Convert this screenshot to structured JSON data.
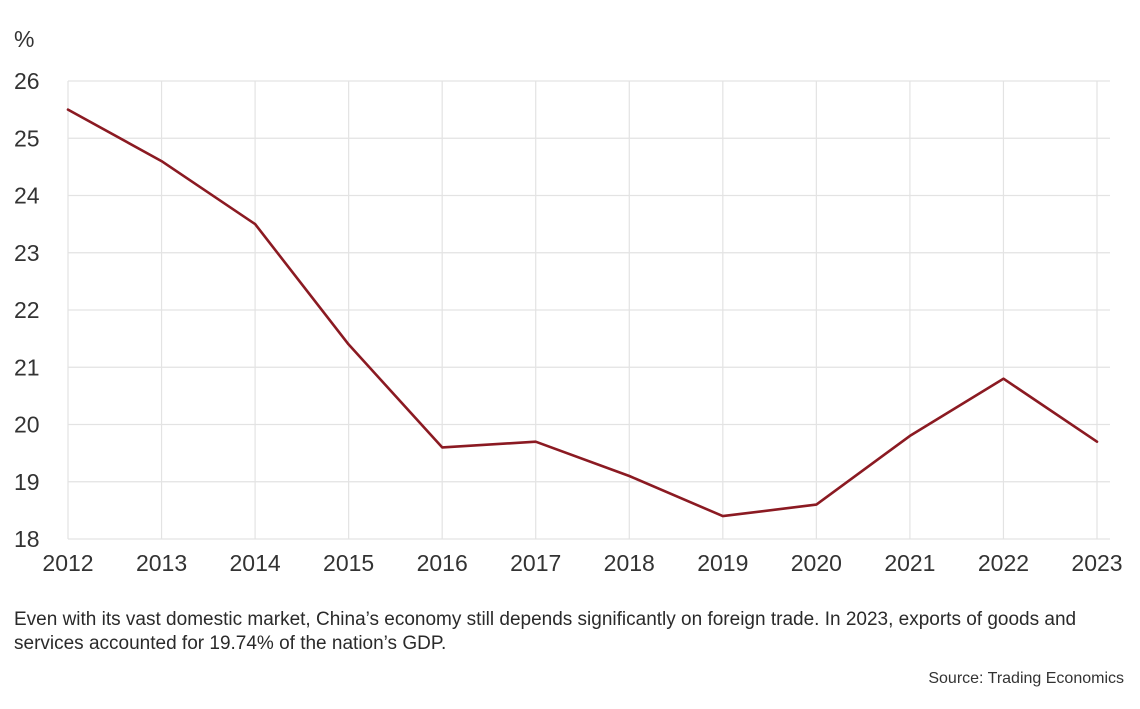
{
  "chart_data": {
    "type": "line",
    "title": "",
    "xlabel": "",
    "ylabel": "%",
    "x": [
      "2012",
      "2013",
      "2014",
      "2015",
      "2016",
      "2017",
      "2018",
      "2019",
      "2020",
      "2021",
      "2022",
      "2023"
    ],
    "series": [
      {
        "values": [
          25.5,
          24.6,
          23.5,
          21.4,
          19.6,
          19.7,
          19.1,
          18.4,
          18.6,
          19.8,
          20.8,
          19.7
        ],
        "color": "#8b1a22"
      }
    ],
    "ylim": [
      18,
      26
    ],
    "yticks": [
      18,
      19,
      20,
      21,
      22,
      23,
      24,
      25,
      26
    ],
    "grid": true,
    "legend": "none"
  },
  "caption": "Even with its vast domestic market, China’s economy still depends significantly on foreign trade. In 2023, exports of goods and services accounted for 19.74% of the nation’s GDP.",
  "source": "Source: Trading Economics"
}
